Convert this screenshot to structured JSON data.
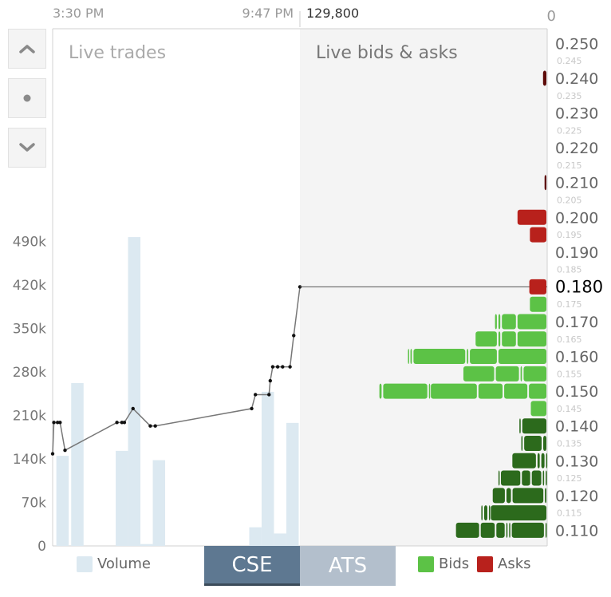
{
  "header": {
    "time_start": "3:30 PM",
    "time_end": "9:47 PM",
    "max_depth": "129,800",
    "zero": "0"
  },
  "panels": {
    "trades_title": "Live trades",
    "book_title": "Live bids & asks"
  },
  "nav": {
    "up_icon": "chevron-up-icon",
    "center_icon": "dot-icon",
    "down_icon": "chevron-down-icon"
  },
  "tabs": [
    {
      "label": "CSE",
      "active": true
    },
    {
      "label": "ATS",
      "active": false
    }
  ],
  "legend": {
    "volume": "Volume",
    "bids": "Bids",
    "asks": "Asks"
  },
  "colors": {
    "volume": "#dce9f1",
    "bid_light": "#5cc246",
    "bid_dark": "#2c6a1c",
    "ask": "#b8211c",
    "ask_dark": "#5e0c0a",
    "price_line": "#777777",
    "book_bg": "#f4f4f4"
  },
  "chart_data": [
    {
      "type": "bar",
      "title": "Live trades",
      "series_volume_name": "Volume",
      "x_range": [
        "3:30 PM",
        "9:47 PM"
      ],
      "y_ticks": [
        "0",
        "70k",
        "140k",
        "210k",
        "280k",
        "350k",
        "420k",
        "490k"
      ],
      "ylim": [
        0,
        560000
      ],
      "volume_bars": [
        {
          "x": 0.015,
          "w": 0.05,
          "v": 145000
        },
        {
          "x": 0.075,
          "w": 0.05,
          "v": 262000
        },
        {
          "x": 0.255,
          "w": 0.05,
          "v": 153000
        },
        {
          "x": 0.305,
          "w": 0.05,
          "v": 497000
        },
        {
          "x": 0.355,
          "w": 0.05,
          "v": 3000
        },
        {
          "x": 0.405,
          "w": 0.05,
          "v": 138000
        },
        {
          "x": 0.795,
          "w": 0.05,
          "v": 30000
        },
        {
          "x": 0.845,
          "w": 0.05,
          "v": 248000
        },
        {
          "x": 0.895,
          "w": 0.05,
          "v": 20000
        },
        {
          "x": 0.945,
          "w": 0.05,
          "v": 198000
        }
      ],
      "price_line": [
        [
          0.0,
          0.132
        ],
        [
          0.005,
          0.141
        ],
        [
          0.02,
          0.141
        ],
        [
          0.03,
          0.141
        ],
        [
          0.05,
          0.133
        ],
        [
          0.26,
          0.141
        ],
        [
          0.28,
          0.141
        ],
        [
          0.29,
          0.141
        ],
        [
          0.325,
          0.145
        ],
        [
          0.395,
          0.14
        ],
        [
          0.415,
          0.14
        ],
        [
          0.805,
          0.145
        ],
        [
          0.82,
          0.149
        ],
        [
          0.875,
          0.149
        ],
        [
          0.88,
          0.153
        ],
        [
          0.89,
          0.157
        ],
        [
          0.91,
          0.157
        ],
        [
          0.93,
          0.157
        ],
        [
          0.96,
          0.157
        ],
        [
          0.975,
          0.166
        ],
        [
          1.0,
          0.18
        ]
      ]
    },
    {
      "type": "bar",
      "title": "Live bids & asks",
      "orientation": "horizontal",
      "price_ticks_major": [
        "0.250",
        "0.240",
        "0.230",
        "0.220",
        "0.210",
        "0.200",
        "0.190",
        "0.180",
        "0.170",
        "0.160",
        "0.150",
        "0.140",
        "0.130",
        "0.120",
        "0.110"
      ],
      "price_ticks_minor": [
        "0.245",
        "0.235",
        "0.225",
        "0.215",
        "0.205",
        "0.195",
        "0.185",
        "0.175",
        "0.165",
        "0.155",
        "0.145",
        "0.135",
        "0.125",
        "0.115"
      ],
      "last_price": "0.180",
      "depth_range": [
        0,
        129800
      ],
      "asks": [
        {
          "price": 0.24,
          "orders": [
            2600
          ]
        },
        {
          "price": 0.21,
          "orders": [
            1800
          ]
        },
        {
          "price": 0.2,
          "orders": [
            16000
          ]
        },
        {
          "price": 0.195,
          "orders": [
            9500
          ]
        },
        {
          "price": 0.18,
          "orders": [
            9800
          ]
        }
      ],
      "bids": [
        {
          "price": 0.175,
          "orders": [
            9500
          ]
        },
        {
          "price": 0.17,
          "orders": [
            16000,
            8200,
            1800,
            1800
          ]
        },
        {
          "price": 0.165,
          "orders": [
            16000,
            8200,
            1800,
            12000
          ]
        },
        {
          "price": 0.16,
          "orders": [
            26000,
            15000,
            1600,
            28000,
            1600,
            1300
          ]
        },
        {
          "price": 0.155,
          "orders": [
            12800,
            1600,
            13000,
            17000
          ]
        },
        {
          "price": 0.15,
          "orders": [
            10000,
            13000,
            13500,
            25000,
            1000,
            24000,
            2000
          ]
        },
        {
          "price": 0.145,
          "orders": [
            9000
          ]
        },
        {
          "price": 0.14,
          "orders": [
            13500,
            1500
          ]
        },
        {
          "price": 0.135,
          "orders": [
            2500,
            10000,
            1500
          ]
        },
        {
          "price": 0.13,
          "orders": [
            1000,
            2500,
            2000,
            13200
          ]
        },
        {
          "price": 0.125,
          "orders": [
            1200,
            1500,
            5800,
            5200,
            11000,
            1300
          ]
        },
        {
          "price": 0.12,
          "orders": [
            1600,
            17000,
            3200,
            7200
          ]
        },
        {
          "price": 0.115,
          "orders": [
            30000,
            1000,
            2500,
            1500
          ]
        },
        {
          "price": 0.11,
          "orders": [
            1300,
            17700,
            1400,
            1500,
            5200,
            8200,
            13000
          ]
        }
      ]
    }
  ]
}
